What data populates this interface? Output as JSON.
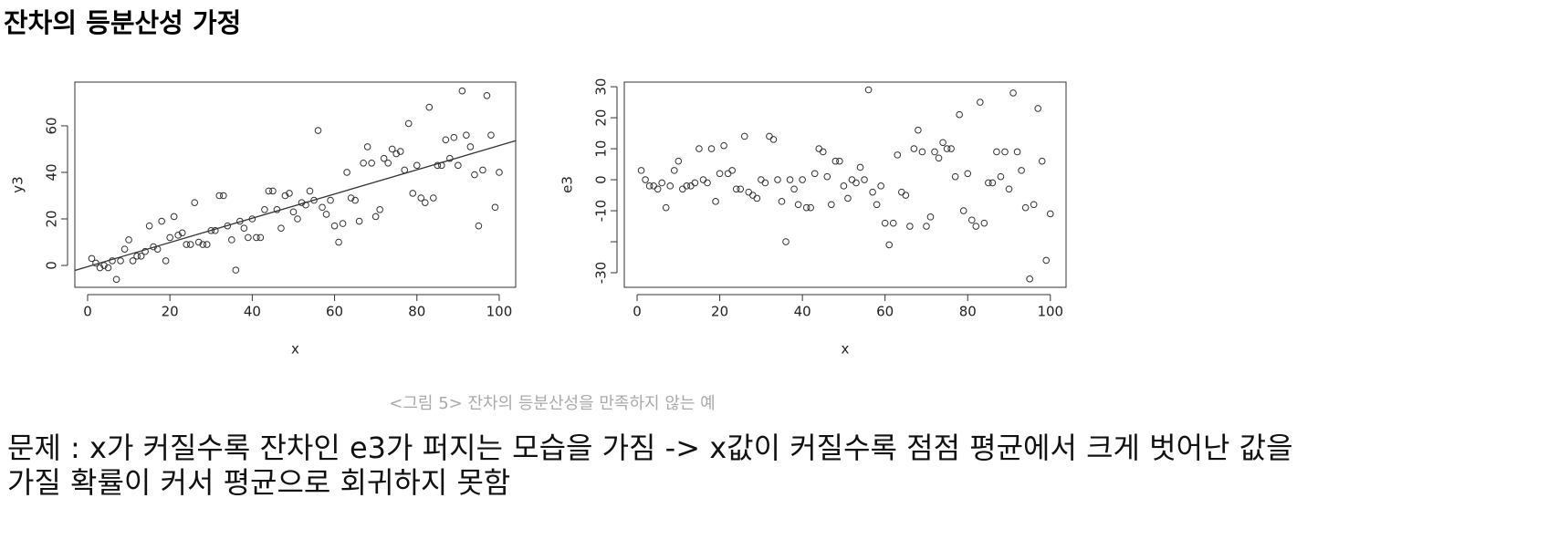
{
  "title": "잔차의 등분산성 가정",
  "chart_data": [
    {
      "type": "scatter",
      "x_label": "x",
      "y_label": "y3",
      "color": "#333333",
      "x": [
        1,
        2,
        3,
        4,
        5,
        6,
        7,
        8,
        9,
        10,
        11,
        12,
        13,
        14,
        15,
        16,
        17,
        18,
        19,
        20,
        21,
        22,
        23,
        24,
        25,
        26,
        27,
        28,
        29,
        30,
        31,
        32,
        33,
        34,
        35,
        36,
        37,
        38,
        39,
        40,
        41,
        42,
        43,
        44,
        45,
        46,
        47,
        48,
        49,
        50,
        51,
        52,
        53,
        54,
        55,
        56,
        57,
        58,
        59,
        60,
        61,
        62,
        63,
        64,
        65,
        66,
        67,
        68,
        69,
        70,
        71,
        72,
        73,
        74,
        75,
        76,
        77,
        78,
        79,
        80,
        81,
        82,
        83,
        84,
        85,
        86,
        87,
        88,
        89,
        90,
        91,
        92,
        93,
        94,
        95,
        96,
        97,
        98,
        99,
        100
      ],
      "values": [
        3,
        1,
        -1,
        0,
        -1,
        2,
        -6,
        2,
        7,
        11,
        2,
        4,
        4,
        6,
        17,
        8,
        7,
        19,
        2,
        12,
        21,
        13,
        14,
        9,
        9,
        27,
        10,
        9,
        9,
        15,
        15,
        30,
        30,
        17,
        11,
        -2,
        19,
        16,
        12,
        20,
        12,
        12,
        24,
        32,
        32,
        24,
        16,
        30,
        31,
        23,
        20,
        27,
        26,
        32,
        28,
        58,
        25,
        22,
        28,
        17,
        10,
        18,
        40,
        29,
        28,
        19,
        44,
        51,
        44,
        21,
        24,
        46,
        44,
        50,
        48,
        49,
        41,
        61,
        31,
        43,
        29,
        27,
        68,
        29,
        43,
        43,
        54,
        46,
        55,
        43,
        75,
        56,
        51,
        39,
        17,
        41,
        73,
        56,
        25,
        40
      ],
      "fit": {
        "x": [
          -3,
          104
        ],
        "y": [
          -2.1,
          53.6
        ]
      },
      "xlim": [
        -3.1,
        104
      ],
      "ylim": [
        -9.4,
        78.8
      ],
      "xticks": [
        0,
        20,
        40,
        60,
        80,
        100
      ],
      "yticks": [
        0,
        20,
        40,
        60
      ]
    },
    {
      "type": "scatter",
      "x_label": "x",
      "y_label": "e3",
      "color": "#333333",
      "x": [
        1,
        2,
        3,
        4,
        5,
        6,
        7,
        8,
        9,
        10,
        11,
        12,
        13,
        14,
        15,
        16,
        17,
        18,
        19,
        20,
        21,
        22,
        23,
        24,
        25,
        26,
        27,
        28,
        29,
        30,
        31,
        32,
        33,
        34,
        35,
        36,
        37,
        38,
        39,
        40,
        41,
        42,
        43,
        44,
        45,
        46,
        47,
        48,
        49,
        50,
        51,
        52,
        53,
        54,
        55,
        56,
        57,
        58,
        59,
        60,
        61,
        62,
        63,
        64,
        65,
        66,
        67,
        68,
        69,
        70,
        71,
        72,
        73,
        74,
        75,
        76,
        77,
        78,
        79,
        80,
        81,
        82,
        83,
        84,
        85,
        86,
        87,
        88,
        89,
        90,
        91,
        92,
        93,
        94,
        95,
        96,
        97,
        98,
        99,
        100
      ],
      "values": [
        3,
        0,
        -2,
        -2,
        -3,
        -1,
        -9,
        -2,
        3,
        6,
        -3,
        -2,
        -2,
        -1,
        10,
        0,
        -1,
        10,
        -7,
        2,
        11,
        2,
        3,
        -3,
        -3,
        14,
        -4,
        -5,
        -6,
        0,
        -1,
        14,
        13,
        0,
        -7,
        -20,
        0,
        -3,
        -8,
        0,
        -9,
        -9,
        2,
        10,
        9,
        1,
        -8,
        6,
        6,
        -2,
        -6,
        0,
        -1,
        4,
        0,
        29,
        -4,
        -8,
        -2,
        -14,
        -21,
        -14,
        8,
        -4,
        -5,
        -15,
        10,
        16,
        9,
        -15,
        -12,
        9,
        7,
        12,
        10,
        10,
        1,
        21,
        -10,
        2,
        -13,
        -15,
        25,
        -14,
        -1,
        -1,
        9,
        1,
        9,
        -3,
        28,
        9,
        3,
        -9,
        -32,
        -8,
        23,
        6,
        -26,
        -11
      ],
      "xlim": [
        -3.1,
        103.8
      ],
      "ylim": [
        -34.7,
        31.5
      ],
      "xticks": [
        0,
        20,
        40,
        60,
        80,
        100
      ],
      "yticks": [
        {
          "value": -30,
          "label": "-30"
        },
        {
          "value": -20,
          "label": null
        },
        {
          "value": -10,
          "label": "-10"
        },
        0,
        10,
        20,
        30
      ]
    }
  ],
  "caption": "<그림 5> 잔차의 등분산성을 만족하지 않는 예",
  "body": [
    "문제 : x가 커질수록 잔차인 e3가 퍼지는 모습을 가짐 -> x값이 커질수록 점점 평균에서 크게 벗어난 값을",
    "가질 확률이 커서 평균으로 회귀하지 못함"
  ]
}
